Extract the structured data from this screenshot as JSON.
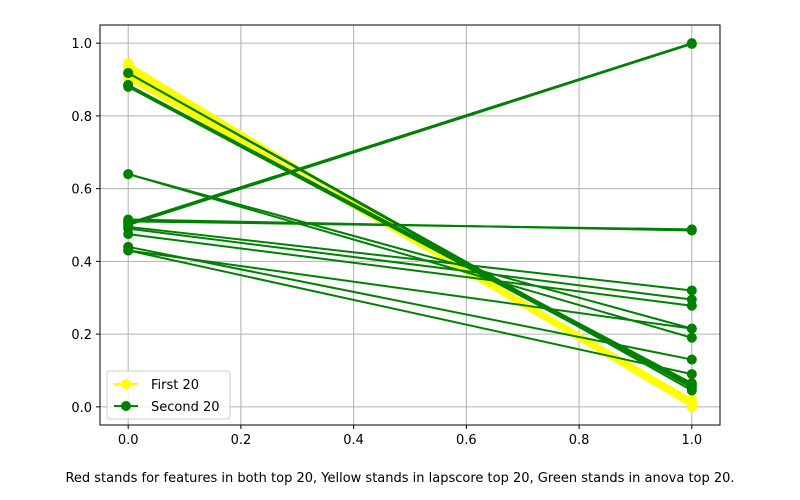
{
  "chart_data": {
    "type": "line",
    "x_ticks": [
      "0.0",
      "0.2",
      "0.4",
      "0.6",
      "0.8",
      "1.0"
    ],
    "y_ticks": [
      "0.0",
      "0.2",
      "0.4",
      "0.6",
      "0.8",
      "1.0"
    ],
    "xlim": [
      -0.05,
      1.05
    ],
    "ylim": [
      -0.05,
      1.05
    ],
    "grid": true,
    "legend_position": "lower-left",
    "colors": {
      "first": "#ffff00",
      "second": "#008000"
    },
    "legend": [
      {
        "label": "First 20",
        "color": "#ffff00"
      },
      {
        "label": "Second 20",
        "color": "#008000"
      }
    ],
    "x": [
      0,
      1
    ],
    "series": [
      {
        "name": "First 20",
        "color": "#ffff00",
        "lines": [
          [
            0.945,
            0.0
          ],
          [
            0.94,
            0.005
          ],
          [
            0.935,
            0.01
          ],
          [
            0.93,
            0.015
          ],
          [
            0.925,
            0.02
          ],
          [
            0.92,
            0.0
          ],
          [
            0.915,
            0.01
          ],
          [
            0.91,
            0.005
          ],
          [
            0.905,
            0.015
          ],
          [
            0.9,
            0.02
          ]
        ]
      },
      {
        "name": "Second 20",
        "color": "#008000",
        "lines": [
          [
            0.918,
            0.045
          ],
          [
            0.918,
            0.052
          ],
          [
            0.885,
            0.06
          ],
          [
            0.885,
            0.065
          ],
          [
            0.88,
            0.055
          ],
          [
            0.64,
            0.19
          ],
          [
            0.64,
            0.215
          ],
          [
            0.515,
            0.485
          ],
          [
            0.51,
            0.488
          ],
          [
            0.505,
            1.0
          ],
          [
            0.5,
            0.998
          ],
          [
            0.495,
            0.32
          ],
          [
            0.49,
            0.295
          ],
          [
            0.475,
            0.278
          ],
          [
            0.44,
            0.13
          ],
          [
            0.43,
            0.215
          ],
          [
            0.43,
            0.09
          ]
        ]
      }
    ]
  },
  "caption": "Red stands for features in both top 20, Yellow stands in lapscore top 20, Green stands in anova top 20."
}
